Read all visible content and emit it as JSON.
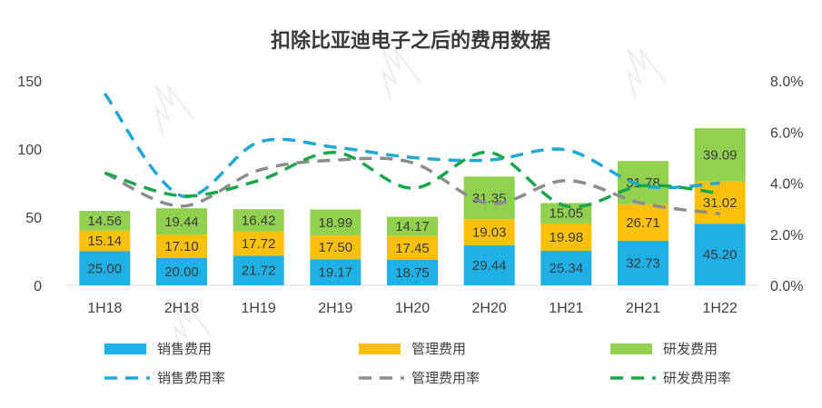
{
  "chart_data": {
    "type": "bar",
    "title": "扣除比亚迪电子之后的费用数据",
    "categories": [
      "1H18",
      "2H18",
      "1H19",
      "2H19",
      "1H20",
      "2H20",
      "1H21",
      "2H21",
      "1H22"
    ],
    "ylim": [
      0,
      150
    ],
    "yticks": [
      "0",
      "50",
      "100",
      "150"
    ],
    "y2lim": [
      0,
      8
    ],
    "y2ticks": [
      "0.0%",
      "2.0%",
      "4.0%",
      "6.0%",
      "8.0%"
    ],
    "stacked": true,
    "grid": false,
    "legend_position": "bottom",
    "series": [
      {
        "name": "销售费用",
        "type": "bar",
        "color": "#1fb0e6",
        "values": [
          25.0,
          20.0,
          21.72,
          19.17,
          18.75,
          29.44,
          25.34,
          32.73,
          45.2
        ],
        "labels": [
          "25.00",
          "20.00",
          "21.72",
          "19.17",
          "18.75",
          "29.44",
          "25.34",
          "32.73",
          "45.20"
        ]
      },
      {
        "name": "管理费用",
        "type": "bar",
        "color": "#fbc10a",
        "values": [
          15.14,
          17.1,
          17.72,
          17.5,
          17.45,
          19.03,
          19.98,
          26.71,
          31.02
        ],
        "labels": [
          "15.14",
          "17.10",
          "17.72",
          "17.50",
          "17.45",
          "19.03",
          "19.98",
          "26.71",
          "31.02"
        ]
      },
      {
        "name": "研发费用",
        "type": "bar",
        "color": "#92d050",
        "values": [
          14.56,
          19.44,
          16.42,
          18.99,
          14.17,
          31.35,
          15.05,
          31.78,
          39.09
        ],
        "labels": [
          "14.56",
          "19.44",
          "16.42",
          "18.99",
          "14.17",
          "31.35",
          "15.05",
          "31.78",
          "39.09"
        ]
      },
      {
        "name": "销售费用率",
        "type": "line",
        "axis": "right",
        "color": "#1fa7d6",
        "dash": "long",
        "values": [
          7.5,
          3.5,
          5.6,
          5.4,
          5.0,
          4.9,
          5.3,
          3.9,
          4.0
        ]
      },
      {
        "name": "管理费用率",
        "type": "line",
        "axis": "right",
        "color": "#8c8c8c",
        "dash": "long",
        "values": [
          4.4,
          3.1,
          4.5,
          4.9,
          4.8,
          3.2,
          4.1,
          3.2,
          2.8
        ]
      },
      {
        "name": "研发费用率",
        "type": "line",
        "axis": "right",
        "color": "#1aa64a",
        "dash": "long",
        "values": [
          4.4,
          3.5,
          4.1,
          5.2,
          3.8,
          5.2,
          3.1,
          3.9,
          3.6
        ]
      }
    ]
  }
}
